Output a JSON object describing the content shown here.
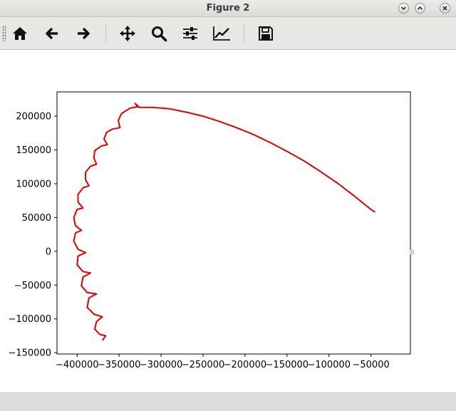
{
  "window": {
    "title": "Figure 2"
  },
  "toolbar": {
    "buttons": [
      {
        "name": "home-button",
        "icon": "home-icon"
      },
      {
        "name": "back-button",
        "icon": "arrow-left-icon"
      },
      {
        "name": "forward-button",
        "icon": "arrow-right-icon"
      },
      {
        "name": "pan-button",
        "icon": "move-icon"
      },
      {
        "name": "zoom-button",
        "icon": "search-icon"
      },
      {
        "name": "configure-subplots-button",
        "icon": "sliders-icon"
      },
      {
        "name": "edit-axis-button",
        "icon": "line-chart-icon"
      },
      {
        "name": "save-button",
        "icon": "save-icon"
      }
    ]
  },
  "chart_data": {
    "type": "line",
    "title": "",
    "xlabel": "",
    "ylabel": "",
    "xlim": [
      -424000,
      -3000
    ],
    "ylim": [
      -152000,
      236000
    ],
    "xticks": [
      -400000,
      -350000,
      -300000,
      -250000,
      -200000,
      -150000,
      -100000,
      -50000
    ],
    "yticks": [
      -150000,
      -100000,
      -50000,
      0,
      50000,
      100000,
      150000,
      200000
    ],
    "xtick_labels": [
      "−400000",
      "−350000",
      "−300000",
      "−250000",
      "−200000",
      "−150000",
      "−100000",
      "−50000"
    ],
    "ytick_labels": [
      "−150000",
      "−100000",
      "−50000",
      "0",
      "50000",
      "100000",
      "150000",
      "200000"
    ],
    "grid": false,
    "series": [
      {
        "color": "#e00000",
        "points": [
          [
            -370000,
            -132000
          ],
          [
            -366000,
            -125000
          ],
          [
            -373000,
            -123000
          ],
          [
            -379000,
            -115000
          ],
          [
            -377000,
            -104000
          ],
          [
            -370000,
            -97000
          ],
          [
            -380000,
            -93000
          ],
          [
            -388000,
            -83000
          ],
          [
            -386000,
            -69000
          ],
          [
            -377000,
            -63000
          ],
          [
            -388000,
            -61000
          ],
          [
            -395000,
            -51000
          ],
          [
            -393000,
            -38000
          ],
          [
            -384000,
            -32000
          ],
          [
            -393000,
            -30000
          ],
          [
            -400000,
            -20000
          ],
          [
            -399000,
            -7000
          ],
          [
            -390000,
            -2000
          ],
          [
            -399000,
            3000
          ],
          [
            -404000,
            15000
          ],
          [
            -402000,
            27000
          ],
          [
            -395000,
            31000
          ],
          [
            -402000,
            38000
          ],
          [
            -404000,
            50000
          ],
          [
            -400000,
            62000
          ],
          [
            -393000,
            64000
          ],
          [
            -399000,
            73000
          ],
          [
            -399000,
            84000
          ],
          [
            -393000,
            94000
          ],
          [
            -386000,
            97000
          ],
          [
            -390000,
            106000
          ],
          [
            -390000,
            117000
          ],
          [
            -384000,
            126000
          ],
          [
            -377000,
            129000
          ],
          [
            -380000,
            138000
          ],
          [
            -379000,
            149000
          ],
          [
            -371000,
            156000
          ],
          [
            -364000,
            158000
          ],
          [
            -368000,
            166000
          ],
          [
            -365000,
            176000
          ],
          [
            -358000,
            181000
          ],
          [
            -349000,
            183000
          ],
          [
            -351000,
            194000
          ],
          [
            -347000,
            204000
          ],
          [
            -337000,
            212000
          ],
          [
            -328000,
            214000
          ],
          [
            -331000,
            219000
          ],
          [
            -326000,
            213000
          ],
          [
            -310000,
            213000
          ],
          [
            -290000,
            211000
          ],
          [
            -270000,
            206000
          ],
          [
            -250000,
            200000
          ],
          [
            -230000,
            192000
          ],
          [
            -210000,
            183000
          ],
          [
            -190000,
            173000
          ],
          [
            -170000,
            161000
          ],
          [
            -150000,
            148000
          ],
          [
            -130000,
            134000
          ],
          [
            -110000,
            118000
          ],
          [
            -90000,
            101000
          ],
          [
            -70000,
            82000
          ],
          [
            -50000,
            62000
          ],
          [
            -45000,
            58000
          ]
        ]
      }
    ]
  }
}
